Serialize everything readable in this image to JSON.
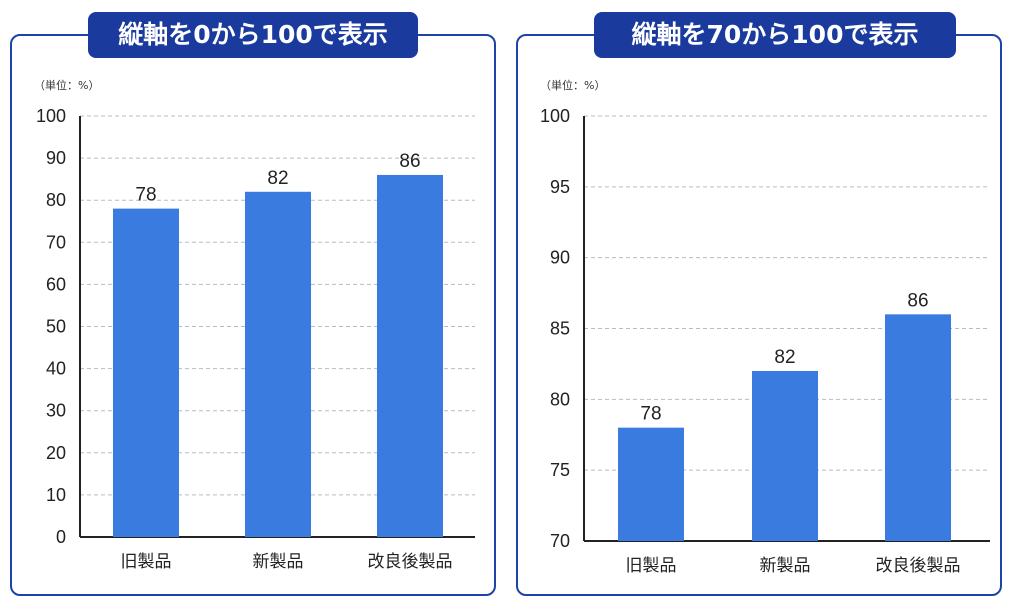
{
  "chart_data": [
    {
      "type": "bar",
      "title": "縦軸を0から100で表示",
      "unit": "（単位：%）",
      "categories": [
        "旧製品",
        "新製品",
        "改良後製品"
      ],
      "values": [
        78,
        82,
        86
      ],
      "ylim": [
        0,
        100
      ],
      "yticks": [
        0,
        10,
        20,
        30,
        40,
        50,
        60,
        70,
        80,
        90,
        100
      ],
      "grid": true,
      "bar_color": "#3a7be0"
    },
    {
      "type": "bar",
      "title": "縦軸を70から100で表示",
      "unit": "（単位：%）",
      "categories": [
        "旧製品",
        "新製品",
        "改良後製品"
      ],
      "values": [
        78,
        82,
        86
      ],
      "ylim": [
        70,
        100
      ],
      "yticks": [
        70,
        75,
        80,
        85,
        90,
        95,
        100
      ],
      "grid": true,
      "bar_color": "#3a7be0"
    }
  ],
  "colors": {
    "frame": "#1d43a8",
    "banner": "#1a3a9e",
    "grid": "#bbbbbb",
    "axis": "#222222"
  }
}
